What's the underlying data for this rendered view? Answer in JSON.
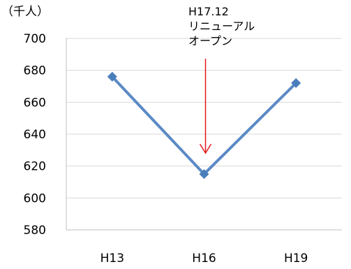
{
  "chart_data": {
    "type": "line",
    "unit_label": "（千人）",
    "categories": [
      "H13",
      "H16",
      "H19"
    ],
    "series": [
      {
        "values": [
          676,
          615,
          672
        ]
      }
    ],
    "ylim": [
      580,
      700
    ],
    "yticks": [
      580,
      600,
      620,
      640,
      660,
      680,
      700
    ],
    "grid": true,
    "legend": "none",
    "line_color": "#5b8ac5",
    "marker_color": "#4a7ebb",
    "annotation": {
      "lines": [
        "H17.12",
        "リニューアル",
        "オープン"
      ],
      "arrow_color": "#e31a1c",
      "target_category": "H16"
    }
  }
}
